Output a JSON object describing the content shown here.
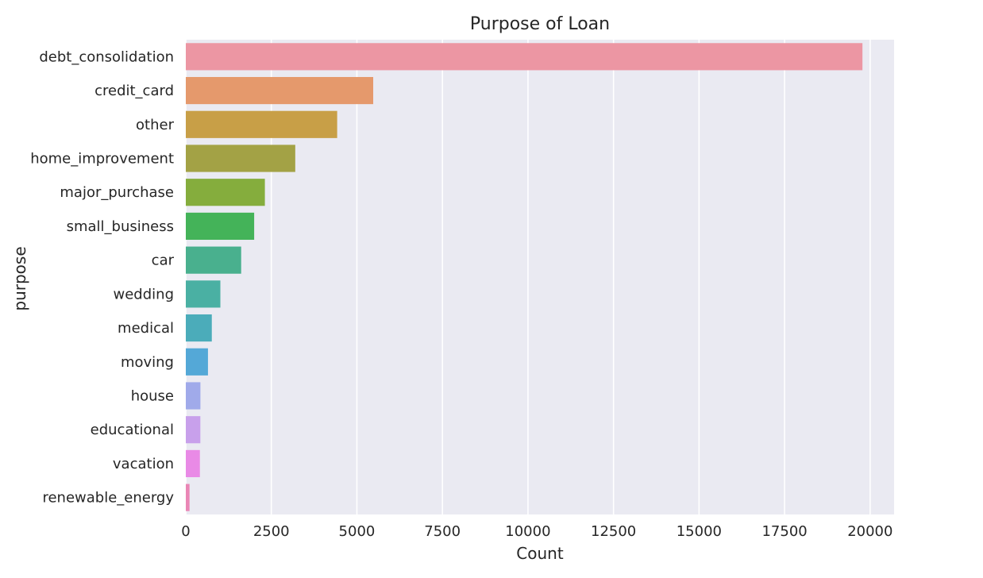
{
  "chart_data": {
    "type": "bar",
    "orientation": "horizontal",
    "title": "Purpose of Loan",
    "xlabel": "Count",
    "ylabel": "purpose",
    "xlim": [
      0,
      20700
    ],
    "xticks": [
      0,
      2500,
      5000,
      7500,
      10000,
      12500,
      15000,
      17500,
      20000
    ],
    "xtick_labels": [
      "0",
      "2500",
      "5000",
      "7500",
      "10000",
      "12500",
      "15000",
      "17500",
      "20000"
    ],
    "grid": true,
    "legend": "none",
    "categories": [
      "debt_consolidation",
      "credit_card",
      "other",
      "home_improvement",
      "major_purchase",
      "small_business",
      "car",
      "wedding",
      "medical",
      "moving",
      "house",
      "educational",
      "vacation",
      "renewable_energy"
    ],
    "values": [
      19776,
      5477,
      4424,
      3199,
      2311,
      1998,
      1618,
      1010,
      760,
      648,
      427,
      425,
      412,
      109
    ],
    "colors": [
      "#ec96a3",
      "#e5996c",
      "#c89f47",
      "#a3a245",
      "#85ad3d",
      "#44b359",
      "#49b08e",
      "#4ab0a3",
      "#4bacba",
      "#54a8d7",
      "#a0aaea",
      "#c8a0eb",
      "#e98ae6",
      "#ea86b5"
    ],
    "background": "#eaeaf2",
    "grid_color": "#ffffff"
  }
}
